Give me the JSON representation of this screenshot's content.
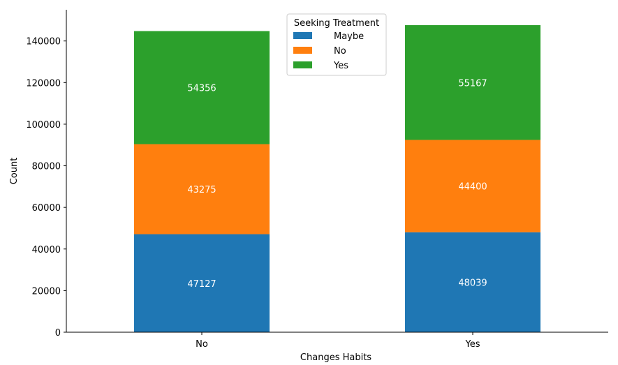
{
  "chart_data": {
    "type": "bar",
    "stacked": true,
    "categories": [
      "No",
      "Yes"
    ],
    "series": [
      {
        "name": "Maybe",
        "values": [
          47127,
          48039
        ],
        "color": "#1f77b4"
      },
      {
        "name": "No",
        "values": [
          43275,
          44400
        ],
        "color": "#ff7f0e"
      },
      {
        "name": "Yes",
        "values": [
          54356,
          55167
        ],
        "color": "#2ca02c"
      }
    ],
    "xlabel": "Changes Habits",
    "ylabel": "Count",
    "ylim": [
      0,
      155000
    ],
    "yticks": [
      0,
      20000,
      40000,
      60000,
      80000,
      100000,
      120000,
      140000
    ],
    "legend": {
      "title": "Seeking Treatment",
      "placement": "top-center"
    },
    "grid": false,
    "data_labels": true
  }
}
